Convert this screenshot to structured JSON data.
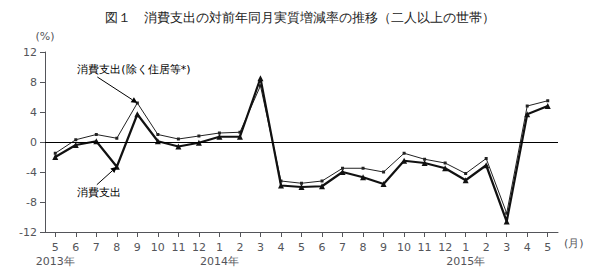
{
  "chart_data": {
    "type": "line",
    "title": "図１　消費支出の対前年同月実質増減率の推移（二人以上の世帯）",
    "ylabel": "(%)",
    "xlabel": "(月)",
    "categories": [
      "5",
      "6",
      "7",
      "8",
      "9",
      "10",
      "11",
      "12",
      "1",
      "2",
      "3",
      "4",
      "5",
      "6",
      "7",
      "8",
      "9",
      "10",
      "11",
      "12",
      "1",
      "2",
      "3",
      "4",
      "5"
    ],
    "year_labels": [
      {
        "label": "2013年",
        "index": 0
      },
      {
        "label": "2014年",
        "index": 8
      },
      {
        "label": "2015年",
        "index": 20
      }
    ],
    "series": [
      {
        "color": "#222222",
        "marker": "square",
        "values": [
          -1.5,
          0.3,
          1.0,
          0.5,
          5.2,
          1.0,
          0.4,
          0.8,
          1.2,
          1.3,
          7.5,
          -5.2,
          -5.5,
          -5.2,
          -3.5,
          -3.5,
          -4.0,
          -1.5,
          -2.3,
          -2.8,
          -4.2,
          -2.2,
          -9.5,
          4.8,
          5.5
        ]
      },
      {
        "color": "#111111",
        "marker": "triangle",
        "values": [
          -2.0,
          -0.4,
          0.1,
          -3.3,
          3.7,
          0.1,
          -0.6,
          -0.1,
          0.7,
          0.7,
          8.5,
          -5.8,
          -6.0,
          -5.9,
          -4.0,
          -4.7,
          -5.6,
          -2.5,
          -2.8,
          -3.5,
          -5.1,
          -3.1,
          -10.6,
          3.7,
          4.8
        ]
      }
    ],
    "annotations": [
      {
        "text": "消費支出(除く住居等*)",
        "x": 4,
        "y": 5.2
      },
      {
        "text": "消費支出",
        "x": 3,
        "y": -3.3
      }
    ],
    "ylim": [
      -12,
      12
    ],
    "yticks": [
      -12,
      -8,
      -4,
      0,
      4,
      8,
      12
    ],
    "grid": false
  }
}
